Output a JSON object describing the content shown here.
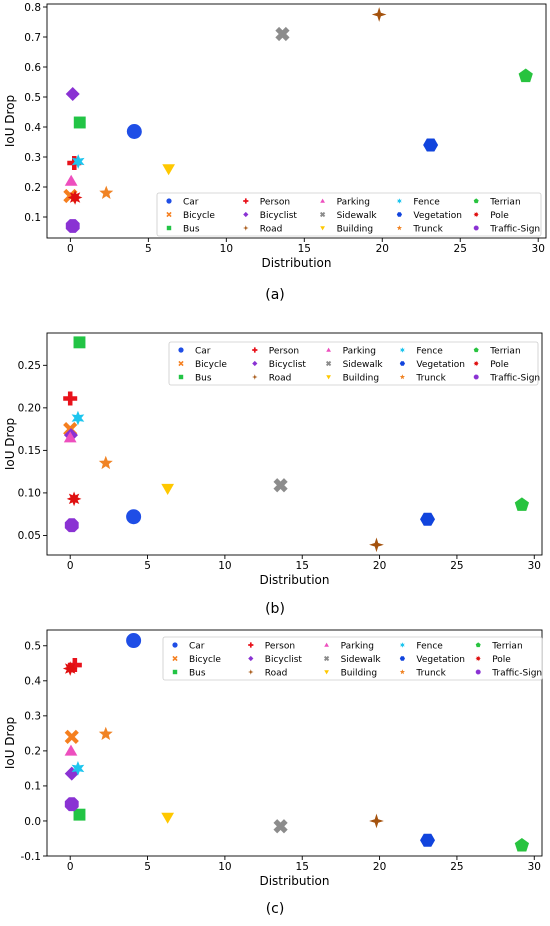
{
  "chart_data": [
    {
      "type": "scatter",
      "caption": "(a)",
      "xlabel": "Distribution",
      "ylabel": "IoU Drop",
      "xlim": [
        -1.5,
        30.5
      ],
      "ylim": [
        0.03,
        0.81
      ],
      "xticks": [
        0,
        5,
        10,
        15,
        20,
        25,
        30
      ],
      "yticks": [
        0.1,
        0.2,
        0.3,
        0.4,
        0.5,
        0.6,
        0.7,
        0.8
      ],
      "legend_position": "bottom-right",
      "grid": false,
      "series": [
        {
          "name": "Car",
          "x": 4.1,
          "y": 0.385
        },
        {
          "name": "Bicycle",
          "x": 0.0,
          "y": 0.17
        },
        {
          "name": "Bus",
          "x": 0.6,
          "y": 0.415
        },
        {
          "name": "Person",
          "x": 0.25,
          "y": 0.28
        },
        {
          "name": "Bicyclist",
          "x": 0.15,
          "y": 0.51
        },
        {
          "name": "Road",
          "x": 19.8,
          "y": 0.775
        },
        {
          "name": "Parking",
          "x": 0.05,
          "y": 0.22
        },
        {
          "name": "Sidewalk",
          "x": 13.6,
          "y": 0.71
        },
        {
          "name": "Building",
          "x": 6.3,
          "y": 0.26
        },
        {
          "name": "Fence",
          "x": 0.5,
          "y": 0.285
        },
        {
          "name": "Vegetation",
          "x": 23.1,
          "y": 0.34
        },
        {
          "name": "Trunck",
          "x": 2.3,
          "y": 0.18
        },
        {
          "name": "Terrian",
          "x": 29.2,
          "y": 0.57
        },
        {
          "name": "Pole",
          "x": 0.3,
          "y": 0.165
        },
        {
          "name": "Traffic-Sign",
          "x": 0.15,
          "y": 0.07
        }
      ]
    },
    {
      "type": "scatter",
      "caption": "(b)",
      "xlabel": "Distribution",
      "ylabel": "IoU Drop",
      "xlim": [
        -1.5,
        30.5
      ],
      "ylim": [
        0.027,
        0.288
      ],
      "xticks": [
        0,
        5,
        10,
        15,
        20,
        25,
        30
      ],
      "yticks": [
        0.05,
        0.1,
        0.15,
        0.2,
        0.25
      ],
      "legend_position": "top-right",
      "grid": false,
      "series": [
        {
          "name": "Car",
          "x": 4.1,
          "y": 0.072
        },
        {
          "name": "Bicycle",
          "x": 0.0,
          "y": 0.175
        },
        {
          "name": "Bus",
          "x": 0.6,
          "y": 0.277
        },
        {
          "name": "Person",
          "x": 0.0,
          "y": 0.211
        },
        {
          "name": "Bicyclist",
          "x": 0.05,
          "y": 0.168
        },
        {
          "name": "Road",
          "x": 19.8,
          "y": 0.039
        },
        {
          "name": "Parking",
          "x": 0.0,
          "y": 0.165
        },
        {
          "name": "Sidewalk",
          "x": 13.6,
          "y": 0.109
        },
        {
          "name": "Building",
          "x": 6.3,
          "y": 0.105
        },
        {
          "name": "Fence",
          "x": 0.5,
          "y": 0.188
        },
        {
          "name": "Vegetation",
          "x": 23.1,
          "y": 0.069
        },
        {
          "name": "Trunck",
          "x": 2.3,
          "y": 0.135
        },
        {
          "name": "Terrian",
          "x": 29.2,
          "y": 0.086
        },
        {
          "name": "Pole",
          "x": 0.25,
          "y": 0.093
        },
        {
          "name": "Traffic-Sign",
          "x": 0.1,
          "y": 0.062
        }
      ]
    },
    {
      "type": "scatter",
      "caption": "(c)",
      "xlabel": "Distribution",
      "ylabel": "IoU Drop",
      "xlim": [
        -1.5,
        30.5
      ],
      "ylim": [
        -0.1,
        0.545
      ],
      "xticks": [
        0,
        5,
        10,
        15,
        20,
        25,
        30
      ],
      "yticks": [
        -0.1,
        0.0,
        0.1,
        0.2,
        0.3,
        0.4,
        0.5
      ],
      "legend_position": "top-right",
      "grid": false,
      "series": [
        {
          "name": "Car",
          "x": 4.1,
          "y": 0.515
        },
        {
          "name": "Bicycle",
          "x": 0.1,
          "y": 0.24
        },
        {
          "name": "Bus",
          "x": 0.6,
          "y": 0.018
        },
        {
          "name": "Person",
          "x": 0.3,
          "y": 0.445
        },
        {
          "name": "Bicyclist",
          "x": 0.1,
          "y": 0.135
        },
        {
          "name": "Road",
          "x": 19.8,
          "y": 0.0
        },
        {
          "name": "Parking",
          "x": 0.05,
          "y": 0.2
        },
        {
          "name": "Sidewalk",
          "x": 13.6,
          "y": -0.015
        },
        {
          "name": "Building",
          "x": 6.3,
          "y": 0.01
        },
        {
          "name": "Fence",
          "x": 0.5,
          "y": 0.15
        },
        {
          "name": "Vegetation",
          "x": 23.1,
          "y": -0.055
        },
        {
          "name": "Trunck",
          "x": 2.3,
          "y": 0.248
        },
        {
          "name": "Terrian",
          "x": 29.2,
          "y": -0.07
        },
        {
          "name": "Pole",
          "x": 0.0,
          "y": 0.435
        },
        {
          "name": "Traffic-Sign",
          "x": 0.1,
          "y": 0.048
        }
      ]
    }
  ],
  "styles": {
    "Car": {
      "color": "#1f4ee6",
      "marker": "circle"
    },
    "Bicycle": {
      "color": "#f57f1f",
      "marker": "x"
    },
    "Bus": {
      "color": "#22c445",
      "marker": "square"
    },
    "Person": {
      "color": "#e8121b",
      "marker": "plus"
    },
    "Bicyclist": {
      "color": "#8a32d3",
      "marker": "diamond"
    },
    "Road": {
      "color": "#a4520d",
      "marker": "star4"
    },
    "Parking": {
      "color": "#ed4fbe",
      "marker": "triangle-up"
    },
    "Sidewalk": {
      "color": "#8c8c8c",
      "marker": "x-filled"
    },
    "Building": {
      "color": "#ffc800",
      "marker": "triangle-down"
    },
    "Fence": {
      "color": "#1dc5ee",
      "marker": "star6"
    },
    "Vegetation": {
      "color": "#1144dd",
      "marker": "hexagon"
    },
    "Trunck": {
      "color": "#f08324",
      "marker": "star5"
    },
    "Terrian": {
      "color": "#28c33f",
      "marker": "pentagon"
    },
    "Pole": {
      "color": "#df1010",
      "marker": "star8"
    },
    "Traffic-Sign": {
      "color": "#8a32d3",
      "marker": "octagon"
    }
  },
  "legend_order": [
    "Car",
    "Person",
    "Parking",
    "Fence",
    "Terrian",
    "Bicycle",
    "Bicyclist",
    "Sidewalk",
    "Vegetation",
    "Pole",
    "Bus",
    "Road",
    "Building",
    "Trunck",
    "Traffic-Sign"
  ]
}
